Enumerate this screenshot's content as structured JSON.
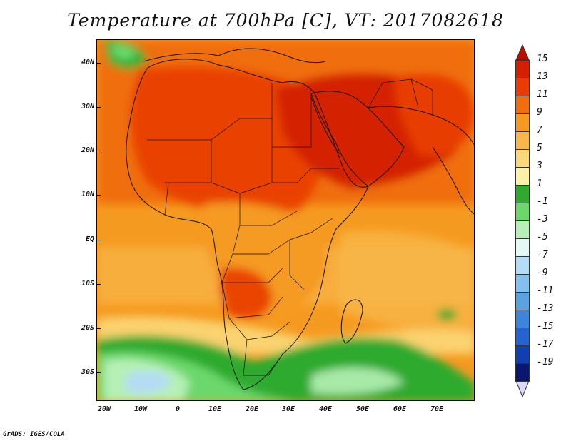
{
  "title": "Temperature at 700hPa [C], VT: 2017082618",
  "credit": "GrADS: IGES/COLA",
  "y_axis_labels": [
    "40N",
    "30N",
    "20N",
    "10N",
    "EQ",
    "10S",
    "20S",
    "30S"
  ],
  "x_axis_labels": [
    "20W",
    "10W",
    "0",
    "10E",
    "20E",
    "30E",
    "40E",
    "50E",
    "60E",
    "70E"
  ],
  "colorbar": {
    "labels": [
      "15",
      "13",
      "11",
      "9",
      "7",
      "5",
      "3",
      "1",
      "-1",
      "-3",
      "-5",
      "-7",
      "-9",
      "-11",
      "-13",
      "-15",
      "-17",
      "-19"
    ],
    "colors": [
      "#d42000",
      "#e83c00",
      "#f06e10",
      "#f59a20",
      "#f8b748",
      "#fbd878",
      "#fdf0a8",
      "#2faa2f",
      "#6cd86c",
      "#b6f0b6",
      "#e4f8f4",
      "#b4dcf4",
      "#84c0ec",
      "#5aa2e2",
      "#3c84dc",
      "#2464cc",
      "#1040b0",
      "#0a1670"
    ],
    "top_arrow_color": "#b81000",
    "bottom_arrow_color": "#dcd8f8"
  },
  "map_colors": {
    "ocean_base": "#f59a20",
    "land_hot": "#e83c00",
    "land_hottest": "#d42000",
    "warm": "#f06e10",
    "mild": "#f8b748",
    "cool_yellow": "#fbd878",
    "green": "#2faa2f",
    "light_green": "#6cd86c",
    "pale_green": "#b6f0b6",
    "pale_blue": "#b4dcf4",
    "coast": "#111111"
  }
}
